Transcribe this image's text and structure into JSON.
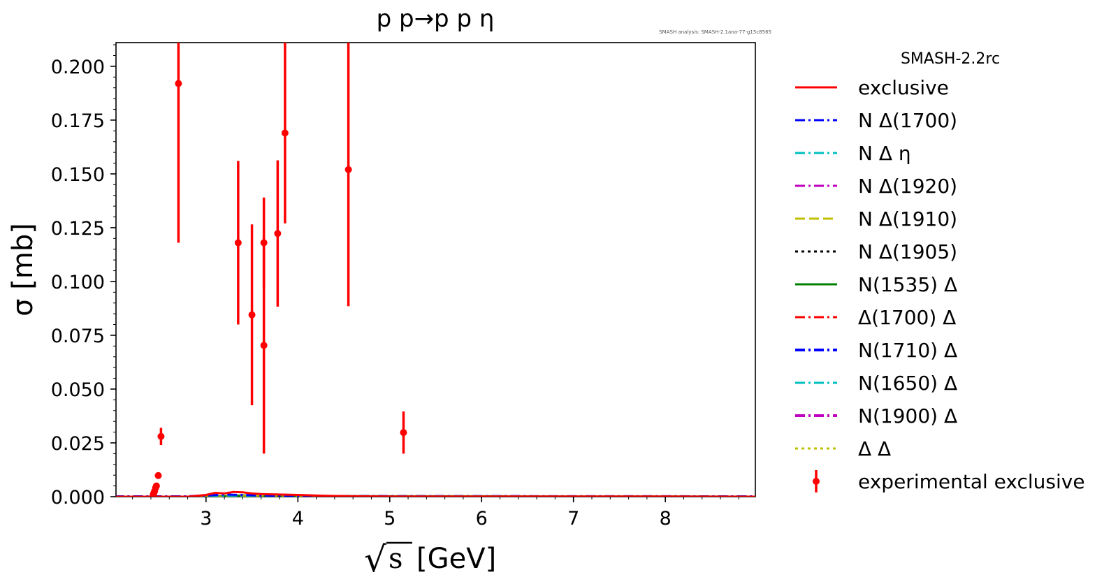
{
  "chart_data": {
    "type": "scatter",
    "title": "p p→p p η",
    "annotation": "SMASH analysis: SMASH-2.1ana-77-g15c8565",
    "xlabel_root": "√",
    "xlabel_var": "s",
    "xlabel_unit": "[GeV]",
    "ylabel": "σ [mb]",
    "xlim": [
      2.02,
      8.98
    ],
    "ylim": [
      0,
      0.211
    ],
    "x_ticks": [
      {
        "value": 3,
        "label": "3"
      },
      {
        "value": 4,
        "label": "4"
      },
      {
        "value": 5,
        "label": "5"
      },
      {
        "value": 6,
        "label": "6"
      },
      {
        "value": 7,
        "label": "7"
      },
      {
        "value": 8,
        "label": "8"
      }
    ],
    "y_ticks": [
      {
        "value": 0,
        "label": "0.000"
      },
      {
        "value": 0.025,
        "label": "0.025"
      },
      {
        "value": 0.05,
        "label": "0.050"
      },
      {
        "value": 0.075,
        "label": "0.075"
      },
      {
        "value": 0.1,
        "label": "0.100"
      },
      {
        "value": 0.125,
        "label": "0.125"
      },
      {
        "value": 0.15,
        "label": "0.150"
      },
      {
        "value": 0.175,
        "label": "0.175"
      },
      {
        "value": 0.2,
        "label": "0.200"
      }
    ],
    "legend_title": "SMASH-2.2rc",
    "legend_position": "outside right",
    "series": [
      {
        "name": "exclusive",
        "color": "#ff0000",
        "dash": "solid",
        "width": 3,
        "x": [
          2.0,
          2.5,
          2.8,
          3.0,
          3.1,
          3.2,
          3.3,
          3.4,
          3.5,
          3.6,
          3.8,
          4.0,
          4.3,
          4.6,
          5.0,
          6.0,
          7.0,
          8.0,
          9.0
        ],
        "y": [
          0,
          0,
          0,
          0.0008,
          0.0018,
          0.0015,
          0.0022,
          0.002,
          0.0015,
          0.0012,
          0.001,
          0.0008,
          0.0004,
          0.0002,
          0.0001,
          0.0001,
          0.0001,
          0.0001,
          0
        ]
      },
      {
        "name": "N Δ(1700)",
        "color": "#0000ff",
        "dash": "dashdot",
        "width": 3,
        "x": [
          2.0,
          2.7,
          3.0,
          3.2,
          3.4,
          3.6,
          3.9,
          4.3,
          5.0,
          6.0,
          9.0
        ],
        "y": [
          0,
          0,
          0.0006,
          0.001,
          0.0008,
          0.0006,
          0.0004,
          0.0002,
          0.0001,
          0,
          0
        ]
      },
      {
        "name": "N Δ η",
        "color": "#00bfbf",
        "dash": "dashdot",
        "width": 3,
        "x": [
          2.0,
          2.8,
          3.2,
          3.6,
          4.0,
          5.0,
          9.0
        ],
        "y": [
          0,
          0,
          0.0004,
          0.0004,
          0.0003,
          0.0001,
          0
        ]
      },
      {
        "name": "N Δ(1920)",
        "color": "#bf00bf",
        "dash": "dashdot",
        "width": 3,
        "x": [
          2.0,
          3.2,
          3.5,
          3.8,
          4.2,
          5.0,
          9.0
        ],
        "y": [
          0,
          0,
          0.0006,
          0.0005,
          0.0003,
          0.0001,
          0
        ]
      },
      {
        "name": "N Δ(1910)",
        "color": "#bfbf00",
        "dash": "dashed",
        "width": 3,
        "x": [
          2.0,
          3.2,
          3.5,
          4.0,
          5.0,
          9.0
        ],
        "y": [
          0,
          0,
          0.0004,
          0.0003,
          0.0001,
          0
        ]
      },
      {
        "name": "N Δ(1905)",
        "color": "#000000",
        "dash": "dotted",
        "width": 3,
        "x": [
          2.0,
          3.2,
          3.6,
          4.0,
          5.0,
          9.0
        ],
        "y": [
          0,
          0,
          0.0003,
          0.0002,
          0.0001,
          0
        ]
      },
      {
        "name": "N(1535) Δ",
        "color": "#008000",
        "dash": "solid",
        "width": 3,
        "x": [
          2.0,
          3.0,
          3.4,
          3.8,
          4.4,
          5.0,
          6.0,
          7.0,
          8.0,
          9.0
        ],
        "y": [
          0,
          0,
          0.0006,
          0.0005,
          0.0003,
          0.0002,
          0.0002,
          0.0001,
          0.0001,
          0
        ]
      },
      {
        "name": "Δ(1700) Δ",
        "color": "#ff0000",
        "dash": "dashdot",
        "width": 3,
        "x": [
          2.0,
          3.2,
          3.5,
          4.0,
          5.0,
          9.0
        ],
        "y": [
          0,
          0,
          0.0003,
          0.0002,
          0.0001,
          0
        ]
      },
      {
        "name": "N(1710) Δ",
        "color": "#0000ff",
        "dash": "dashdot",
        "width": 4,
        "x": [
          2.0,
          3.3,
          3.6,
          4.0,
          5.0,
          9.0
        ],
        "y": [
          0,
          0,
          0.0003,
          0.0002,
          0.0001,
          0
        ]
      },
      {
        "name": "N(1650) Δ",
        "color": "#00bfbf",
        "dash": "dashdot",
        "width": 3,
        "x": [
          2.0,
          3.3,
          3.6,
          4.0,
          5.0,
          9.0
        ],
        "y": [
          0,
          0,
          0.0003,
          0.0002,
          0.0001,
          0
        ]
      },
      {
        "name": "N(1900) Δ",
        "color": "#bf00bf",
        "dash": "dashdot",
        "width": 4,
        "x": [
          2.0,
          3.5,
          3.8,
          4.2,
          5.0,
          9.0
        ],
        "y": [
          0,
          0,
          0.0003,
          0.0002,
          0.0001,
          0
        ]
      },
      {
        "name": "Δ Δ",
        "color": "#bfbf00",
        "dash": "dotted",
        "width": 3,
        "x": [
          2.0,
          3.5,
          3.9,
          4.4,
          5.0,
          9.0
        ],
        "y": [
          0,
          0,
          0.0002,
          0.0001,
          0.0001,
          0
        ]
      }
    ],
    "experimental": {
      "name": "experimental exclusive",
      "color": "#ff0000",
      "points": [
        {
          "x": 2.425,
          "y": 0.0007,
          "err": 0.0002
        },
        {
          "x": 2.43,
          "y": 0.0015,
          "err": 0.0003
        },
        {
          "x": 2.44,
          "y": 0.0025,
          "err": 0.0004
        },
        {
          "x": 2.45,
          "y": 0.004,
          "err": 0.0005
        },
        {
          "x": 2.46,
          "y": 0.005,
          "err": 0.0006
        },
        {
          "x": 2.48,
          "y": 0.0098,
          "err": 0.001
        },
        {
          "x": 2.51,
          "y": 0.028,
          "err": 0.004
        },
        {
          "x": 2.7,
          "y": 0.192,
          "err": 0.074
        },
        {
          "x": 3.35,
          "y": 0.118,
          "err": 0.038
        },
        {
          "x": 3.5,
          "y": 0.0845,
          "err": 0.042
        },
        {
          "x": 3.63,
          "y": 0.118,
          "err": 0.021
        },
        {
          "x": 3.63,
          "y": 0.0703,
          "err": 0.0503
        },
        {
          "x": 3.78,
          "y": 0.1223,
          "err": 0.034
        },
        {
          "x": 3.86,
          "y": 0.169,
          "err": 0.042
        },
        {
          "x": 4.55,
          "y": 0.152,
          "err": 0.0635
        },
        {
          "x": 5.15,
          "y": 0.0298,
          "err": 0.0098
        }
      ]
    }
  }
}
